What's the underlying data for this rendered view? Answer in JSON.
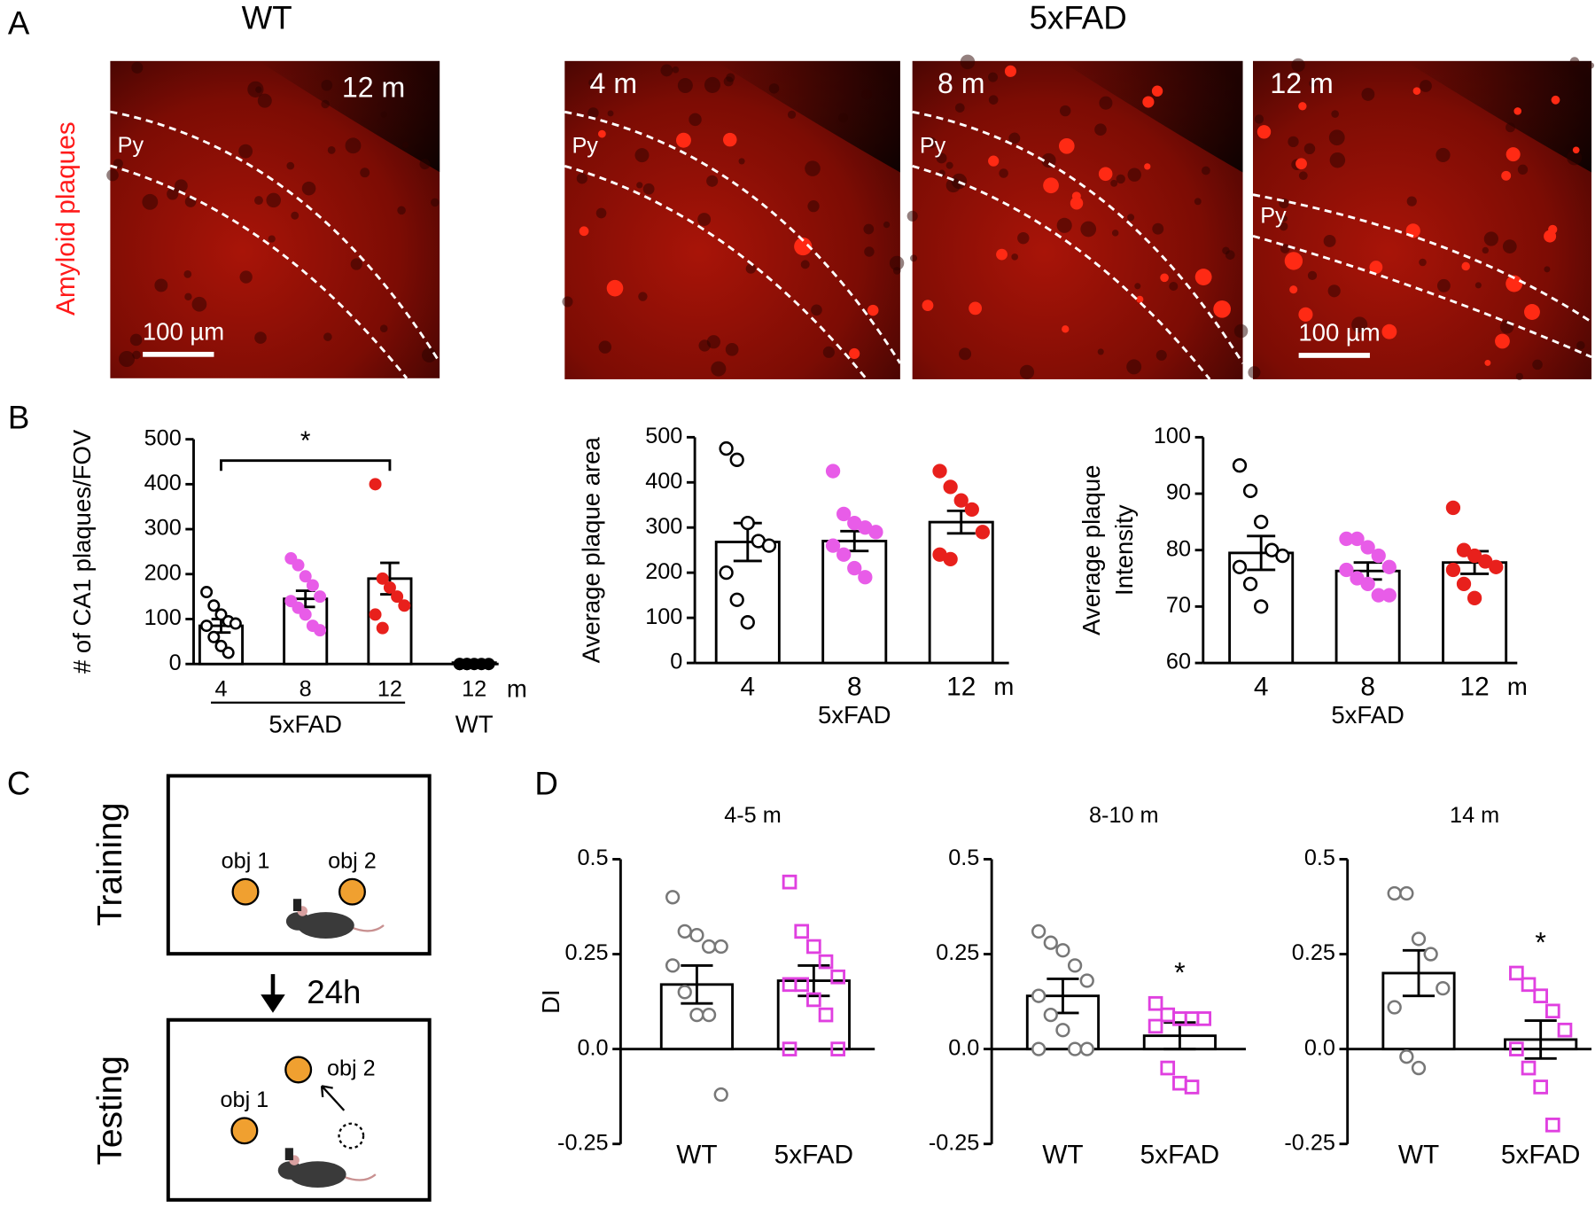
{
  "panel_labels": [
    "A",
    "B",
    "C",
    "D"
  ],
  "panel_a": {
    "groups": [
      "WT",
      "5xFAD"
    ],
    "stain_label": "Amyloid plaques",
    "images": [
      {
        "age": "12 m",
        "region": "Py",
        "scale_bar": "100 µm"
      },
      {
        "age": "4 m",
        "region": "Py"
      },
      {
        "age": "8 m",
        "region": "Py"
      },
      {
        "age": "12 m",
        "region": "Py",
        "scale_bar": "100 µm"
      }
    ]
  },
  "panel_c": {
    "phases": [
      "Training",
      "Testing"
    ],
    "delay": "24h",
    "objects": [
      [
        "obj 1",
        "obj 2"
      ],
      [
        "obj 1",
        "obj 2"
      ]
    ]
  },
  "chart_data": [
    {
      "type": "bar",
      "ylabel": "# of CA1 plaques/FOV",
      "categories": [
        "4",
        "8",
        "12",
        "12"
      ],
      "x_unit": "m",
      "groups": [
        "5xFAD",
        "WT"
      ],
      "values": [
        85,
        145,
        190,
        3
      ],
      "errors": [
        15,
        18,
        35,
        2
      ],
      "points": [
        [
          160,
          130,
          110,
          95,
          90,
          85,
          60,
          40,
          25
        ],
        [
          235,
          220,
          195,
          175,
          150,
          140,
          125,
          110,
          85,
          75
        ],
        [
          400,
          190,
          170,
          150,
          130,
          110,
          80
        ],
        [
          0,
          0,
          0,
          0,
          0,
          0,
          0
        ]
      ],
      "point_colors": [
        "#000000",
        "#e85ce8",
        "#e8201c",
        "#000000"
      ],
      "point_filled": [
        false,
        true,
        true,
        true
      ],
      "point_markers": [
        "circle",
        "circle",
        "circle",
        "circle"
      ],
      "significance": "*",
      "ylim": [
        0,
        500
      ],
      "yticks": [
        0,
        100,
        200,
        300,
        400,
        500
      ]
    },
    {
      "type": "bar",
      "ylabel": "Average plaque area",
      "categories": [
        "4",
        "8",
        "12"
      ],
      "x_unit": "m",
      "groups": [
        "5xFAD"
      ],
      "values": [
        268,
        270,
        312
      ],
      "errors": [
        42,
        22,
        25
      ],
      "points": [
        [
          475,
          450,
          310,
          270,
          260,
          200,
          140,
          90
        ],
        [
          425,
          330,
          310,
          300,
          290,
          260,
          240,
          210,
          190
        ],
        [
          425,
          390,
          360,
          340,
          290,
          240,
          230
        ]
      ],
      "point_colors": [
        "#000000",
        "#e85ce8",
        "#e8201c"
      ],
      "point_filled": [
        false,
        true,
        true
      ],
      "point_markers": [
        "circle",
        "circle",
        "circle"
      ],
      "ylim": [
        0,
        500
      ],
      "yticks": [
        0,
        100,
        200,
        300,
        400,
        500
      ]
    },
    {
      "type": "bar",
      "ylabel": [
        "Average plaque",
        "Intensity"
      ],
      "categories": [
        "4",
        "8",
        "12"
      ],
      "x_unit": "m",
      "groups": [
        "5xFAD"
      ],
      "values": [
        79.5,
        76.3,
        77.8
      ],
      "errors": [
        3,
        1.5,
        2
      ],
      "points": [
        [
          95,
          90.5,
          85,
          80,
          79,
          77,
          74,
          70
        ],
        [
          82,
          82,
          80.5,
          79,
          77,
          76.5,
          75,
          74,
          72,
          72
        ],
        [
          87.5,
          80,
          79,
          78,
          77,
          76.5,
          74,
          71.5
        ]
      ],
      "point_colors": [
        "#000000",
        "#e85ce8",
        "#e8201c"
      ],
      "point_filled": [
        false,
        true,
        true
      ],
      "point_markers": [
        "circle",
        "circle",
        "circle"
      ],
      "ylim": [
        60,
        100
      ],
      "yticks": [
        60,
        70,
        80,
        90,
        100
      ]
    },
    {
      "type": "bar",
      "title": "4-5 m",
      "ylabel": "DI",
      "categories": [
        "WT",
        "5xFAD"
      ],
      "values": [
        0.17,
        0.18
      ],
      "errors": [
        0.05,
        0.04
      ],
      "points": [
        [
          0.4,
          0.31,
          0.3,
          0.27,
          0.27,
          0.22,
          0.15,
          0.09,
          0.09,
          -0.12
        ],
        [
          0.44,
          0.31,
          0.27,
          0.23,
          0.19,
          0.17,
          0.17,
          0.13,
          0.09,
          0.0,
          0.0
        ]
      ],
      "point_colors": [
        "#777777",
        "#e040e0"
      ],
      "point_filled": [
        false,
        false
      ],
      "point_markers": [
        "circle",
        "square"
      ],
      "ylim": [
        -0.25,
        0.5
      ],
      "yticks": [
        -0.25,
        {
          "value": 0,
          "label": "0.0"
        },
        0.25,
        0.5
      ]
    },
    {
      "type": "bar",
      "title": "8-10 m",
      "categories": [
        "WT",
        "5xFAD"
      ],
      "values": [
        0.14,
        0.035
      ],
      "errors": [
        0.045,
        0.035
      ],
      "points": [
        [
          0.31,
          0.28,
          0.26,
          0.22,
          0.18,
          0.14,
          0.09,
          0.05,
          0.0,
          0.0,
          0.0
        ],
        [
          0.12,
          0.09,
          0.08,
          0.08,
          0.08,
          0.06,
          -0.05,
          -0.09,
          -0.1
        ]
      ],
      "point_colors": [
        "#777777",
        "#e040e0"
      ],
      "point_filled": [
        false,
        false
      ],
      "point_markers": [
        "circle",
        "square"
      ],
      "significance": "*",
      "ylim": [
        -0.25,
        0.5
      ],
      "yticks": [
        -0.25,
        {
          "value": 0,
          "label": "0.0"
        },
        0.25,
        0.5
      ]
    },
    {
      "type": "bar",
      "title": "14 m",
      "categories": [
        "WT",
        "5xFAD"
      ],
      "values": [
        0.2,
        0.025
      ],
      "errors": [
        0.06,
        0.05
      ],
      "points": [
        [
          0.41,
          0.41,
          0.29,
          0.25,
          0.16,
          0.11,
          -0.02,
          -0.05
        ],
        [
          0.2,
          0.17,
          0.14,
          0.1,
          0.05,
          0.0,
          -0.05,
          -0.1,
          -0.2
        ]
      ],
      "point_colors": [
        "#777777",
        "#e040e0"
      ],
      "point_filled": [
        false,
        false
      ],
      "point_markers": [
        "circle",
        "square"
      ],
      "significance": "*",
      "ylim": [
        -0.25,
        0.5
      ],
      "yticks": [
        -0.25,
        {
          "value": 0,
          "label": "0.0"
        },
        0.25,
        0.5
      ]
    }
  ]
}
